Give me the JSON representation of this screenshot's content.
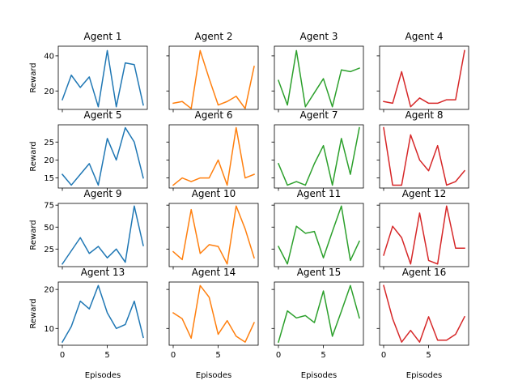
{
  "chart_data": {
    "type": "line",
    "layout": "4x4 grid of small multiples",
    "shared_x": true,
    "y_shared_by_row": true,
    "xlabel": "Episodes",
    "ylabel": "Reward",
    "x": [
      0,
      1,
      2,
      3,
      4,
      5,
      6,
      7,
      8,
      9
    ],
    "xticks": [
      0,
      5
    ],
    "rows": [
      {
        "ylim": [
          9.5,
          45.5
        ],
        "yticks": [
          20,
          40
        ]
      },
      {
        "ylim": [
          12.2,
          29.8
        ],
        "yticks": [
          15,
          20,
          25
        ]
      },
      {
        "ylim": [
          5,
          77
        ],
        "yticks": [
          25,
          50,
          75
        ]
      },
      {
        "ylim": [
          5.7,
          21.9
        ],
        "yticks": [
          10,
          20
        ]
      }
    ],
    "series": [
      {
        "name": "Agent 1",
        "color": "#1f77b4",
        "values": [
          15,
          29,
          22,
          28,
          11,
          43,
          11,
          36,
          35,
          12
        ]
      },
      {
        "name": "Agent 2",
        "color": "#ff7f0e",
        "values": [
          13,
          14,
          10,
          43,
          27,
          12,
          14,
          17,
          10,
          34
        ]
      },
      {
        "name": "Agent 3",
        "color": "#2ca02c",
        "values": [
          26,
          12,
          43,
          11,
          19,
          27,
          11,
          32,
          31,
          33
        ]
      },
      {
        "name": "Agent 4",
        "color": "#d62728",
        "values": [
          14,
          13,
          31,
          11,
          16,
          13,
          13,
          15,
          15,
          43
        ]
      },
      {
        "name": "Agent 5",
        "color": "#1f77b4",
        "values": [
          16,
          13,
          16,
          19,
          13,
          26,
          20,
          29,
          25,
          15
        ]
      },
      {
        "name": "Agent 6",
        "color": "#ff7f0e",
        "values": [
          13,
          15,
          14,
          15,
          15,
          20,
          13,
          29,
          15,
          16
        ]
      },
      {
        "name": "Agent 7",
        "color": "#2ca02c",
        "values": [
          19,
          13,
          14,
          13,
          19,
          24,
          13,
          26,
          16,
          29
        ]
      },
      {
        "name": "Agent 8",
        "color": "#d62728",
        "values": [
          29,
          13,
          13,
          27,
          20,
          17,
          24,
          13,
          14,
          17
        ]
      },
      {
        "name": "Agent 9",
        "color": "#1f77b4",
        "values": [
          8,
          23,
          38,
          20,
          28,
          15,
          25,
          10,
          74,
          29
        ]
      },
      {
        "name": "Agent 10",
        "color": "#ff7f0e",
        "values": [
          22,
          13,
          70,
          20,
          30,
          28,
          8,
          74,
          48,
          15
        ]
      },
      {
        "name": "Agent 11",
        "color": "#2ca02c",
        "values": [
          28,
          8,
          51,
          43,
          45,
          15,
          45,
          74,
          12,
          34
        ]
      },
      {
        "name": "Agent 12",
        "color": "#d62728",
        "values": [
          18,
          51,
          38,
          8,
          66,
          12,
          8,
          74,
          26,
          26
        ]
      },
      {
        "name": "Agent 13",
        "color": "#1f77b4",
        "values": [
          6.5,
          10.5,
          17,
          15,
          21,
          14,
          10,
          11,
          17,
          7.7
        ]
      },
      {
        "name": "Agent 14",
        "color": "#ff7f0e",
        "values": [
          14,
          12.5,
          7.5,
          21,
          18,
          8.5,
          12,
          8,
          6.5,
          11.5
        ]
      },
      {
        "name": "Agent 15",
        "color": "#2ca02c",
        "values": [
          6.5,
          14.5,
          12.7,
          13.3,
          11.5,
          19.6,
          8,
          14.4,
          21,
          12.7
        ]
      },
      {
        "name": "Agent 16",
        "color": "#d62728",
        "values": [
          21,
          12.5,
          6.5,
          9.5,
          6.5,
          13,
          7,
          7,
          8.5,
          13
        ]
      }
    ]
  }
}
